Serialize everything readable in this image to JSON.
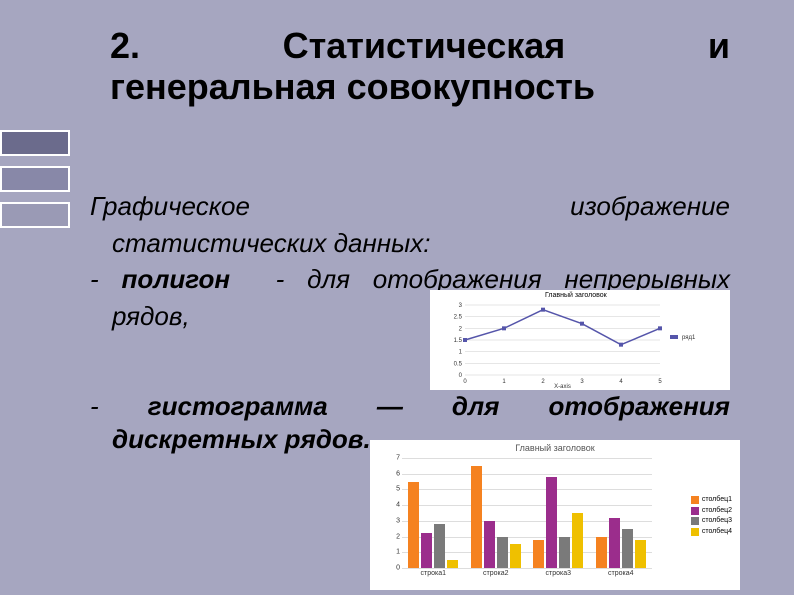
{
  "colors": {
    "background": "#a6a6c0",
    "decor1": "#6b6b8c",
    "decor2": "#8888a8",
    "decor3": "#9a9ab5",
    "text": "#000000"
  },
  "title": {
    "line1_a": "2.",
    "line1_b": "Статистическая",
    "line1_c": "и",
    "line2": "генеральная совокупность"
  },
  "body1": {
    "l1_a": "Графическое",
    "l1_b": "изображение",
    "l2": "статистических данных:",
    "l3_dash": "-",
    "l3_poly": "полигон",
    "l3_rest_a": "- для отображения непрерывных",
    "l4": "рядов,"
  },
  "body2": {
    "l1_dash": "-",
    "l1_hist": "гистограмма",
    "l1_mdash": "—",
    "l1_dlya": "для",
    "l1_otob": "отображения",
    "l2": "дискретных рядов."
  },
  "line_chart": {
    "title": "Главный заголовок",
    "series_label": "ряд1",
    "x": [
      0,
      1,
      2,
      3,
      4,
      5
    ],
    "y": [
      1.5,
      2.0,
      2.8,
      2.2,
      1.3,
      2.0
    ],
    "ylim": [
      0,
      3
    ],
    "ytick_step": 0.5,
    "xlabel": "X-axis",
    "line_color": "#5555aa",
    "grid_color": "#cccccc"
  },
  "bar_chart": {
    "title": "Главный заголовок",
    "categories": [
      "строка1",
      "строка2",
      "строка3",
      "строка4"
    ],
    "legend": [
      "столбец1",
      "столбец2",
      "столбец3",
      "столбец4"
    ],
    "colors": [
      "#f58220",
      "#9b2d8c",
      "#7a7a7a",
      "#efc000"
    ],
    "ylim": [
      0,
      7
    ],
    "ytick_step": 1,
    "data": [
      [
        5.5,
        2.2,
        2.8,
        0.5
      ],
      [
        6.5,
        3.0,
        2.0,
        1.5
      ],
      [
        1.8,
        5.8,
        2.0,
        3.5
      ],
      [
        2.0,
        3.2,
        2.5,
        1.8
      ]
    ]
  }
}
